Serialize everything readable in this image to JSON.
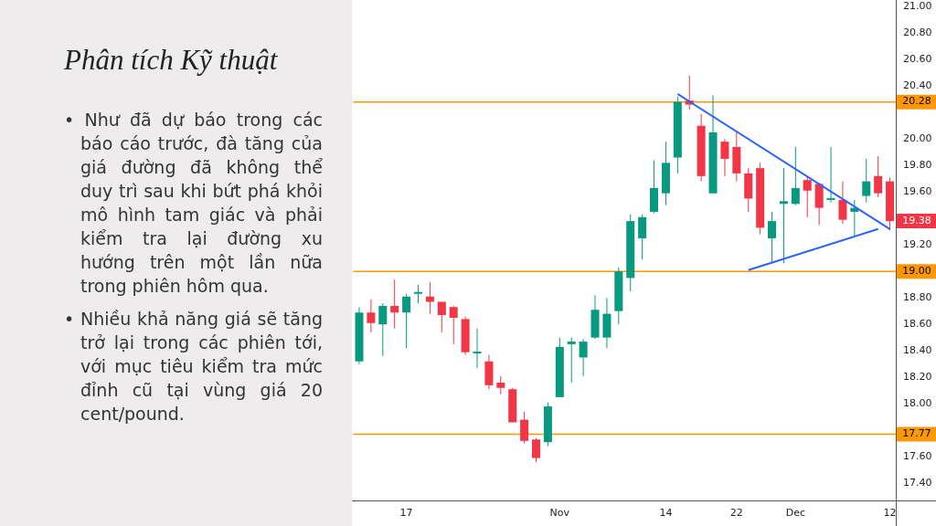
{
  "chart_data": {
    "type": "candlestick",
    "title": "Phân tích Kỹ thuật",
    "annotations": [
      "• Như đã dự báo trong các báo cáo trước, đà tăng của giá đường đã không thể duy trì sau khi bứt phá khỏi mô hình tam giác và phải kiểm tra lại đường xu hướng trên một lần nữa trong phiên hôm qua.",
      "• Nhiều khả năng giá sẽ tăng trở lại trong các phiên tới, với mục tiêu kiểm tra mức đỉnh cũ tại vùng giá 20 cent/pound.",
      {
        "text": "19.38",
        "y": 19.38
      }
    ],
    "categories": [
      null,
      null,
      null,
      null,
      "17",
      null,
      null,
      null,
      null,
      null,
      null,
      null,
      null,
      null,
      null,
      null,
      null,
      "Nov",
      null,
      null,
      null,
      null,
      null,
      null,
      null,
      null,
      "14",
      null,
      null,
      null,
      null,
      null,
      "22",
      null,
      null,
      null,
      null,
      "Dec",
      null,
      null,
      null,
      null,
      null,
      null,
      null,
      "12"
    ],
    "ohlc": [
      [
        18.32,
        18.73,
        18.3,
        18.69
      ],
      [
        18.69,
        18.79,
        18.54,
        18.61
      ],
      [
        18.6,
        18.76,
        18.36,
        18.74
      ],
      [
        18.74,
        18.94,
        18.57,
        18.69
      ],
      [
        18.69,
        18.83,
        18.42,
        18.81
      ],
      [
        18.83,
        18.9,
        18.76,
        18.84
      ],
      [
        18.81,
        18.92,
        18.68,
        18.77
      ],
      [
        18.77,
        18.77,
        18.54,
        18.67
      ],
      [
        18.73,
        18.74,
        18.45,
        18.65
      ],
      [
        18.64,
        18.66,
        18.37,
        18.39
      ],
      [
        18.38,
        18.57,
        18.27,
        18.39
      ],
      [
        18.32,
        18.37,
        18.11,
        18.14
      ],
      [
        18.16,
        18.21,
        18.07,
        18.12
      ],
      [
        18.11,
        18.12,
        17.86,
        17.86
      ],
      [
        17.88,
        17.94,
        17.7,
        17.72
      ],
      [
        17.73,
        17.74,
        17.56,
        17.59
      ],
      [
        17.71,
        18.01,
        17.68,
        17.98
      ],
      [
        18.05,
        18.5,
        18.05,
        18.43
      ],
      [
        18.45,
        18.5,
        18.16,
        18.47
      ],
      [
        18.35,
        18.49,
        18.21,
        18.47
      ],
      [
        18.5,
        18.82,
        18.49,
        18.71
      ],
      [
        18.5,
        18.8,
        18.42,
        18.68
      ],
      [
        18.7,
        19.03,
        18.6,
        19.0
      ],
      [
        18.95,
        19.43,
        18.85,
        19.38
      ],
      [
        19.25,
        19.43,
        19.09,
        19.41
      ],
      [
        19.45,
        19.84,
        19.44,
        19.63
      ],
      [
        19.59,
        19.98,
        19.5,
        19.82
      ],
      [
        19.86,
        20.32,
        19.74,
        20.28
      ],
      [
        20.29,
        20.48,
        20.22,
        20.26
      ],
      [
        20.1,
        20.19,
        19.68,
        19.72
      ],
      [
        19.59,
        20.33,
        19.59,
        20.05
      ],
      [
        19.98,
        20.0,
        19.72,
        19.85
      ],
      [
        19.94,
        20.06,
        19.68,
        19.74
      ],
      [
        19.74,
        19.78,
        19.45,
        19.55
      ],
      [
        19.78,
        19.82,
        19.28,
        19.33
      ],
      [
        19.25,
        19.45,
        19.06,
        19.38
      ],
      [
        19.51,
        19.78,
        19.06,
        19.53
      ],
      [
        19.51,
        19.94,
        19.5,
        19.63
      ],
      [
        19.69,
        19.72,
        19.41,
        19.61
      ],
      [
        19.66,
        19.67,
        19.35,
        19.48
      ],
      [
        19.54,
        19.94,
        19.52,
        19.55
      ],
      [
        19.54,
        19.68,
        19.36,
        19.39
      ],
      [
        19.45,
        19.54,
        19.27,
        19.48
      ],
      [
        19.57,
        19.85,
        19.52,
        19.68
      ],
      [
        19.72,
        19.87,
        19.56,
        19.59
      ],
      [
        19.68,
        19.71,
        19.31,
        19.38
      ]
    ],
    "colors": [
      "#089981",
      "#f23645",
      "#089981",
      "#f23645",
      "#089981",
      "#089981",
      "#f23645",
      "#f23645",
      "#f23645",
      "#f23645",
      "#089981",
      "#f23645",
      "#f23645",
      "#f23645",
      "#f23645",
      "#f23645",
      "#089981",
      "#089981",
      "#089981",
      "#089981",
      "#089981",
      "#089981",
      "#089981",
      "#089981",
      "#089981",
      "#089981",
      "#089981",
      "#089981",
      "#f23645",
      "#f23645",
      "#089981",
      "#f23645",
      "#f23645",
      "#f23645",
      "#f23645",
      "#089981",
      "#089981",
      "#089981",
      "#f23645",
      "#f23645",
      "#089981",
      "#f23645",
      "#089981",
      "#089981",
      "#f23645",
      "#f23645"
    ],
    "series": [
      {
        "type": "line",
        "color": "#2962ff",
        "values": [
          null,
          null,
          null,
          null,
          null,
          null,
          null,
          null,
          null,
          null,
          null,
          null,
          null,
          null,
          null,
          null,
          null,
          null,
          null,
          null,
          null,
          null,
          null,
          null,
          null,
          null,
          null,
          20.34,
          null,
          null,
          null,
          null,
          null,
          null,
          null,
          null,
          null,
          null,
          null,
          null,
          null,
          null,
          null,
          null,
          null,
          19.32
        ]
      },
      {
        "type": "line",
        "color": "#2962ff",
        "values": [
          null,
          null,
          null,
          null,
          null,
          null,
          null,
          null,
          null,
          null,
          null,
          null,
          null,
          null,
          null,
          null,
          null,
          null,
          null,
          null,
          null,
          null,
          null,
          null,
          null,
          null,
          null,
          null,
          null,
          null,
          null,
          null,
          null,
          19.01,
          null,
          null,
          null,
          null,
          null,
          null,
          null,
          null,
          null,
          null,
          19.32,
          null
        ]
      }
    ],
    "ref_lines": [
      {
        "axis": "y",
        "value": 20.28,
        "label": "20.28",
        "color": "#ff9800"
      },
      {
        "axis": "y",
        "value": 19.0,
        "label": "19.00",
        "color": "#ff9800"
      },
      {
        "axis": "y",
        "value": 17.77,
        "label": "17.77",
        "color": "#ff9800"
      }
    ],
    "ylim": [
      17.27,
      21.05
    ],
    "yticks": [
      {
        "value": 17.4,
        "label": "17.40"
      },
      {
        "value": 17.6,
        "label": "17.60"
      },
      {
        "value": 18.0,
        "label": "18.00"
      },
      {
        "value": 18.2,
        "label": "18.20"
      },
      {
        "value": 18.4,
        "label": "18.40"
      },
      {
        "value": 18.6,
        "label": "18.60"
      },
      {
        "value": 18.8,
        "label": "18.80"
      },
      {
        "value": 19.0,
        "label": null
      },
      {
        "value": 19.2,
        "label": "19.20"
      },
      {
        "value": 19.6,
        "label": "19.60"
      },
      {
        "value": 19.8,
        "label": "19.80"
      },
      {
        "value": 20.0,
        "label": "20.00"
      },
      {
        "value": 20.4,
        "label": "20.40"
      },
      {
        "value": 20.6,
        "label": "20.60"
      },
      {
        "value": 20.8,
        "label": "20.80"
      },
      {
        "value": 21.0,
        "label": "21.00"
      }
    ],
    "legend": false
  }
}
